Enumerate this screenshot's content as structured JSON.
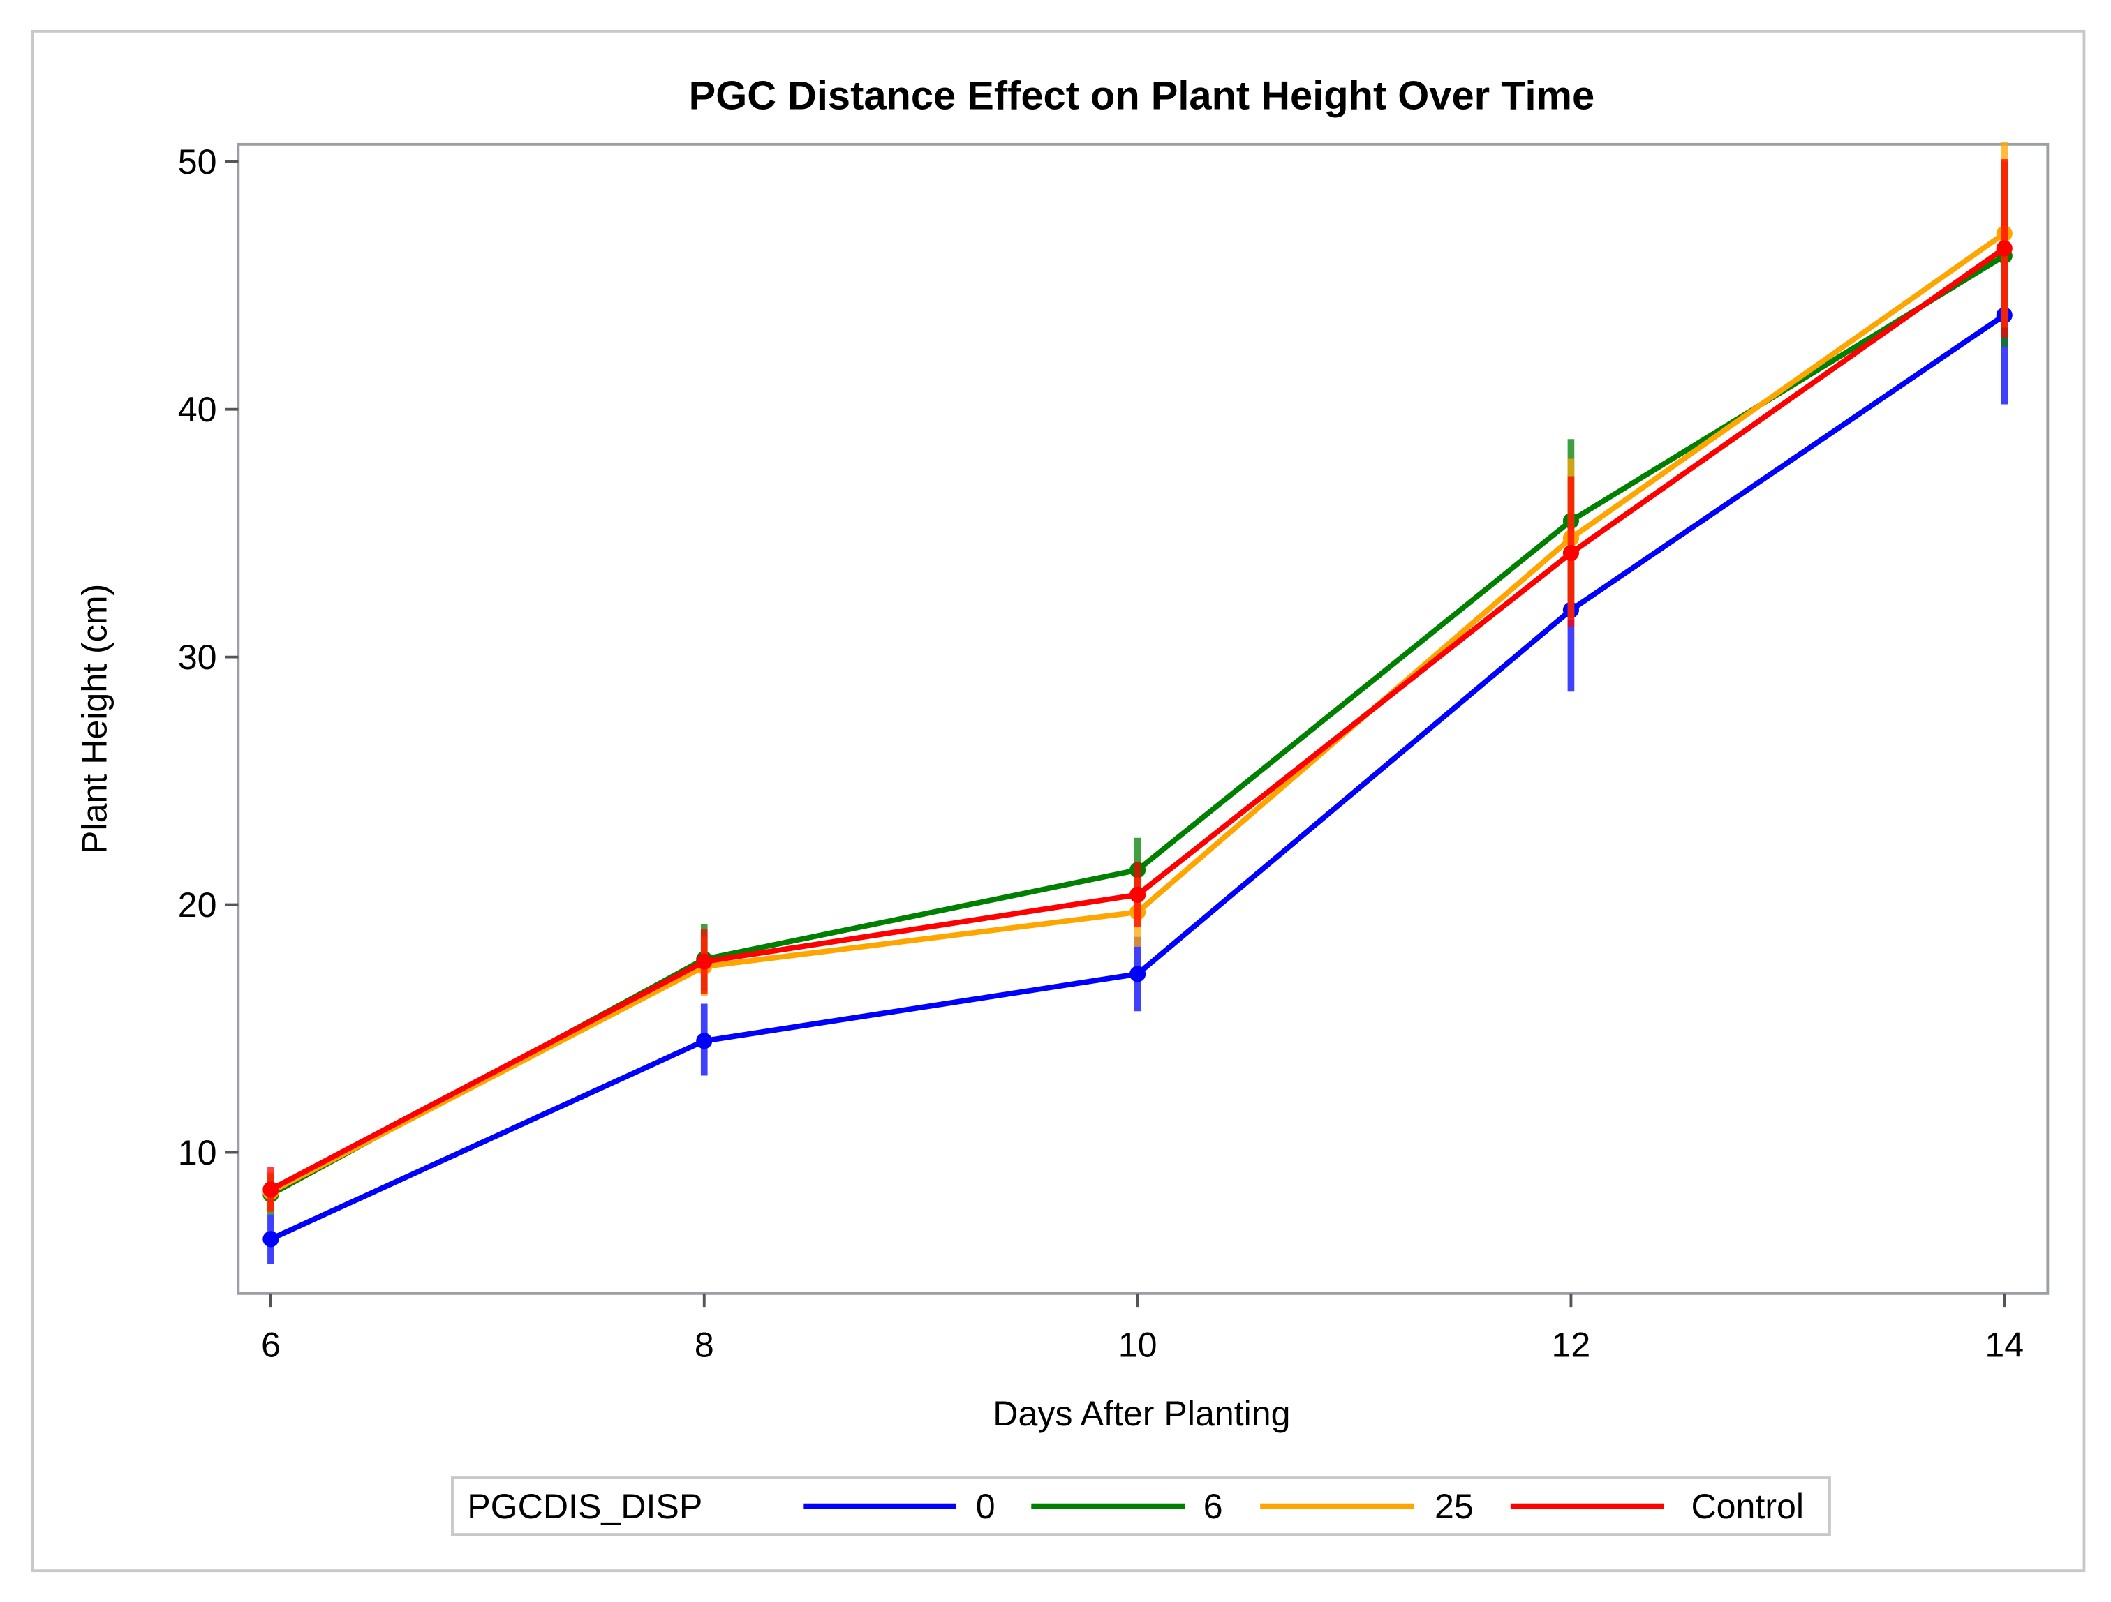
{
  "chart_data": {
    "type": "line",
    "title": "PGC Distance Effect on Plant Height Over Time",
    "xlabel": "Days After Planting",
    "ylabel": "Plant Height (cm)",
    "x": [
      6,
      8,
      10,
      12,
      14
    ],
    "xticks": [
      "6",
      "8",
      "10",
      "12",
      "14"
    ],
    "yticks": [
      "10",
      "20",
      "30",
      "40",
      "50"
    ],
    "xlim": [
      5.85,
      14.2
    ],
    "ylim": [
      4.3,
      50.7
    ],
    "grid": false,
    "error_bars": true,
    "legend": {
      "title": "PGCDIS_DISP",
      "placement": "bottom"
    },
    "series": [
      {
        "name": "0",
        "color": "#0000ff",
        "values": [
          6.5,
          14.5,
          17.2,
          31.9,
          43.8
        ],
        "lower": [
          5.5,
          13.1,
          15.7,
          28.6,
          40.2
        ],
        "upper": [
          7.5,
          16.0,
          18.7,
          35.2,
          47.5
        ]
      },
      {
        "name": "6",
        "color": "#008000",
        "values": [
          8.3,
          17.8,
          21.4,
          35.5,
          46.2
        ],
        "lower": [
          7.5,
          16.5,
          20.1,
          32.3,
          42.5
        ],
        "upper": [
          9.1,
          19.2,
          22.7,
          38.8,
          50.0
        ]
      },
      {
        "name": "25",
        "color": "#ffa500",
        "values": [
          8.4,
          17.5,
          19.7,
          34.8,
          47.1
        ],
        "lower": [
          7.6,
          16.3,
          18.3,
          31.5,
          43.3
        ],
        "upper": [
          9.2,
          18.7,
          21.1,
          38.0,
          50.8
        ]
      },
      {
        "name": "Control",
        "color": "#ff0000",
        "values": [
          8.5,
          17.7,
          20.4,
          34.2,
          46.5
        ],
        "lower": [
          7.6,
          16.4,
          19.1,
          31.2,
          42.9
        ],
        "upper": [
          9.4,
          19.0,
          21.7,
          37.3,
          50.1
        ]
      }
    ]
  }
}
